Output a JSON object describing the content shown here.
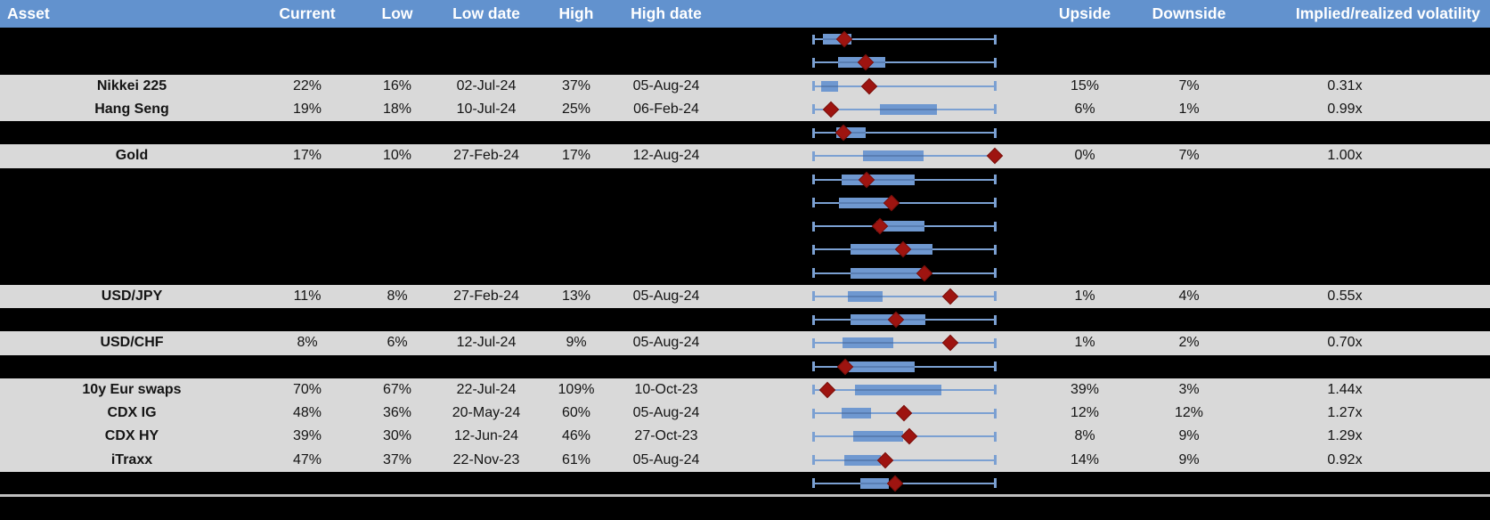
{
  "colors": {
    "header_bg": "#6292ce",
    "row_bg": "#d9d9d9",
    "redacted_bg": "#000000",
    "box_fill": "#6f98d0",
    "whisker": "#7ba0d2",
    "marker": "#9e1410",
    "divider": "#bfbfbf"
  },
  "chart_data": {
    "type": "table",
    "title": "Asset implied volatility overview with low-high range charts",
    "columns": [
      "Asset",
      "Current",
      "Low",
      "Low date",
      "High",
      "High date",
      "Upside",
      "Downside",
      "Implied/realized volatility"
    ],
    "range_chart_note": "Each row's mini chart: whiskers span the low-high volatility range (0 = low end, 1 = high end), blue box marks an interquartile band, red diamond marks the current level. Several rows are blacked out (redacted) but their charts remain visible.",
    "rows": [
      {
        "kind": "redacted",
        "range_chart": {
          "box": [
            0.054,
            0.211
          ],
          "marker": 0.172
        }
      },
      {
        "kind": "redacted",
        "range_chart": {
          "box": [
            0.137,
            0.397
          ],
          "marker": 0.289
        }
      },
      {
        "kind": "data",
        "asset": "Nikkei 225",
        "current": "22%",
        "low": "16%",
        "low_date": "02-Jul-24",
        "high": "37%",
        "high_date": "05-Aug-24",
        "upside": "15%",
        "downside": "7%",
        "implied_realized_vol": "0.31x",
        "range_chart": {
          "box": [
            0.044,
            0.137
          ],
          "marker": 0.309
        }
      },
      {
        "kind": "data",
        "asset": "Hang Seng",
        "current": "19%",
        "low": "18%",
        "low_date": "10-Jul-24",
        "high": "25%",
        "high_date": "06-Feb-24",
        "upside": "6%",
        "downside": "1%",
        "implied_realized_vol": "0.99x",
        "range_chart": {
          "box": [
            0.368,
            0.681
          ],
          "marker": 0.098
        }
      },
      {
        "kind": "redacted",
        "range_chart": {
          "box": [
            0.127,
            0.289
          ],
          "marker": 0.167
        }
      },
      {
        "kind": "data",
        "asset": "Gold",
        "current": "17%",
        "low": "10%",
        "low_date": "27-Feb-24",
        "high": "17%",
        "high_date": "12-Aug-24",
        "upside": "0%",
        "downside": "7%",
        "implied_realized_vol": "1.00x",
        "range_chart": {
          "box": [
            0.275,
            0.608
          ],
          "marker": 1.0
        }
      },
      {
        "kind": "redacted",
        "range_chart": {
          "box": [
            0.157,
            0.559
          ],
          "marker": 0.294
        }
      },
      {
        "kind": "redacted",
        "range_chart": {
          "box": [
            0.142,
            0.431
          ],
          "marker": 0.431
        }
      },
      {
        "kind": "redacted",
        "range_chart": {
          "box": [
            0.348,
            0.613
          ],
          "marker": 0.368
        }
      },
      {
        "kind": "redacted",
        "range_chart": {
          "box": [
            0.206,
            0.657
          ],
          "marker": 0.495
        }
      },
      {
        "kind": "redacted",
        "range_chart": {
          "box": [
            0.206,
            0.598
          ],
          "marker": 0.613
        }
      },
      {
        "kind": "data",
        "asset": "USD/JPY",
        "current": "11%",
        "low": "8%",
        "low_date": "27-Feb-24",
        "high": "13%",
        "high_date": "05-Aug-24",
        "upside": "1%",
        "downside": "4%",
        "implied_realized_vol": "0.55x",
        "range_chart": {
          "box": [
            0.191,
            0.382
          ],
          "marker": 0.755
        }
      },
      {
        "kind": "redacted",
        "range_chart": {
          "box": [
            0.206,
            0.618
          ],
          "marker": 0.456
        }
      },
      {
        "kind": "data",
        "asset": "USD/CHF",
        "current": "8%",
        "low": "6%",
        "low_date": "12-Jul-24",
        "high": "9%",
        "high_date": "05-Aug-24",
        "upside": "1%",
        "downside": "2%",
        "implied_realized_vol": "0.70x",
        "range_chart": {
          "box": [
            0.162,
            0.441
          ],
          "marker": 0.755
        }
      },
      {
        "kind": "redacted",
        "range_chart": {
          "box": [
            0.196,
            0.559
          ],
          "marker": 0.176
        }
      },
      {
        "kind": "data",
        "asset": "10y Eur swaps",
        "current": "70%",
        "low": "67%",
        "low_date": "22-Jul-24",
        "high": "109%",
        "high_date": "10-Oct-23",
        "upside": "39%",
        "downside": "3%",
        "implied_realized_vol": "1.44x",
        "range_chart": {
          "box": [
            0.23,
            0.706
          ],
          "marker": 0.078
        }
      },
      {
        "kind": "data",
        "asset": "CDX IG",
        "current": "48%",
        "low": "36%",
        "low_date": "20-May-24",
        "high": "60%",
        "high_date": "05-Aug-24",
        "upside": "12%",
        "downside": "12%",
        "implied_realized_vol": "1.27x",
        "range_chart": {
          "box": [
            0.157,
            0.319
          ],
          "marker": 0.5
        }
      },
      {
        "kind": "data",
        "asset": "CDX HY",
        "current": "39%",
        "low": "30%",
        "low_date": "12-Jun-24",
        "high": "46%",
        "high_date": "27-Oct-23",
        "upside": "8%",
        "downside": "9%",
        "implied_realized_vol": "1.29x",
        "range_chart": {
          "box": [
            0.221,
            0.495
          ],
          "marker": 0.529
        }
      },
      {
        "kind": "data",
        "asset": "iTraxx",
        "current": "47%",
        "low": "37%",
        "low_date": "22-Nov-23",
        "high": "61%",
        "high_date": "05-Aug-24",
        "upside": "14%",
        "downside": "9%",
        "implied_realized_vol": "0.92x",
        "range_chart": {
          "box": [
            0.172,
            0.373
          ],
          "marker": 0.397
        }
      },
      {
        "kind": "redacted",
        "range_chart": {
          "box": [
            0.26,
            0.417
          ],
          "marker": 0.451
        }
      }
    ]
  }
}
